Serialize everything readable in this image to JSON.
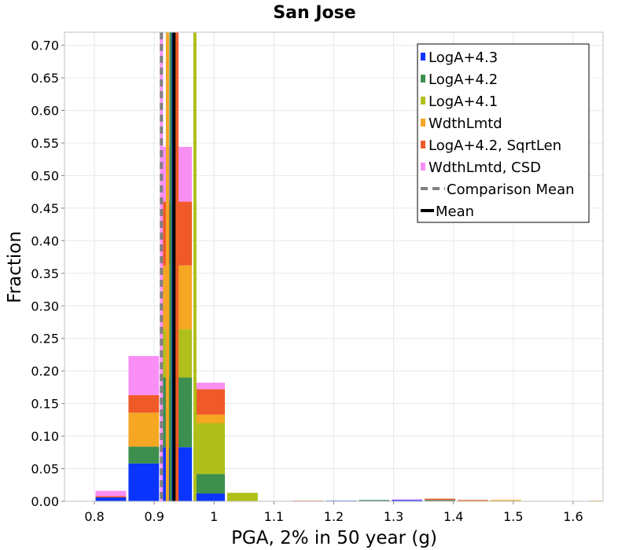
{
  "chart_data": {
    "type": "bar",
    "title": "San Jose",
    "xlabel": "PGA, 2% in 50 year (g)",
    "ylabel": "Fraction",
    "xlim": [
      0.75,
      1.65
    ],
    "ylim": [
      0,
      0.72
    ],
    "xticks": [
      0.8,
      0.9,
      1,
      1.1,
      1.2,
      1.3,
      1.4,
      1.5,
      1.6
    ],
    "xtick_labels": [
      "0.8",
      "0.9",
      "1",
      "1.1",
      "1.2",
      "1.3",
      "1.4",
      "1.5",
      "1.6"
    ],
    "yticks": [
      0,
      0.05,
      0.1,
      0.15,
      0.2,
      0.25,
      0.3,
      0.35,
      0.4,
      0.45,
      0.5,
      0.55,
      0.6,
      0.65,
      0.7
    ],
    "ytick_labels": [
      "0.00",
      "0.05",
      "0.10",
      "0.15",
      "0.20",
      "0.25",
      "0.30",
      "0.35",
      "0.40",
      "0.45",
      "0.50",
      "0.55",
      "0.60",
      "0.65",
      "0.70"
    ],
    "grid": true,
    "stacked": true,
    "legend_position": "top-right",
    "bin_width": 0.055,
    "bin_centers": [
      0.8275,
      0.8825,
      0.9375,
      0.9925,
      1.0475,
      1.1025,
      1.1575,
      1.2125,
      1.2675,
      1.3225,
      1.3775,
      1.4325,
      1.4875,
      1.5425,
      1.5975,
      1.6525
    ],
    "series": [
      {
        "name": "LogA+4.3",
        "color": "#0a35ff",
        "values": [
          0.006,
          0.058,
          0.083,
          0.012,
          0.0,
          0.0,
          0.0,
          0.001,
          0.001,
          0.002,
          0.001,
          0.0,
          0.0,
          0.0,
          0.0,
          0.0
        ]
      },
      {
        "name": "LogA+4.2",
        "color": "#3d8f4e",
        "values": [
          0.0,
          0.026,
          0.107,
          0.03,
          0.0,
          0.0,
          0.0,
          0.0,
          0.001,
          0.0,
          0.001,
          0.0,
          0.0,
          0.0,
          0.0,
          0.0
        ]
      },
      {
        "name": "LogA+4.1",
        "color": "#b0bf1a",
        "values": [
          0.0,
          0.0,
          0.074,
          0.078,
          0.013,
          0.0,
          0.0,
          0.0,
          0.0,
          0.0,
          0.0,
          0.0,
          0.001,
          0.0,
          0.0,
          0.0
        ]
      },
      {
        "name": "WdthLmtd",
        "color": "#f5a623",
        "values": [
          0.0,
          0.052,
          0.098,
          0.013,
          0.0,
          0.0,
          0.0,
          0.0,
          0.0,
          0.0,
          0.0,
          0.001,
          0.001,
          0.0,
          0.0,
          0.001
        ]
      },
      {
        "name": "LogA+4.2, SqrtLen",
        "color": "#f05a28",
        "values": [
          0.002,
          0.027,
          0.098,
          0.039,
          0.0,
          0.0,
          0.001,
          0.0,
          0.0,
          0.0,
          0.002,
          0.001,
          0.0,
          0.0,
          0.0,
          0.0
        ]
      },
      {
        "name": "WdthLmtd, CSD",
        "color": "#f98ef5",
        "values": [
          0.008,
          0.06,
          0.084,
          0.01,
          0.0,
          0.0,
          0.0,
          0.0,
          0.0,
          0.001,
          0.0,
          0.0,
          0.0,
          0.0,
          0.0,
          0.0
        ]
      }
    ],
    "mean_lines": [
      {
        "x": 0.912,
        "color": "#f98ef5",
        "style": "solid"
      },
      {
        "x": 0.922,
        "color": "#f5a623",
        "style": "solid"
      },
      {
        "x": 0.928,
        "color": "#3d8f4e",
        "style": "solid"
      },
      {
        "x": 0.932,
        "color": "#0a35ff",
        "style": "solid"
      },
      {
        "x": 0.938,
        "color": "#f05a28",
        "style": "solid"
      },
      {
        "x": 0.968,
        "color": "#b0bf1a",
        "style": "solid"
      },
      {
        "x": 0.912,
        "color": "#808080",
        "style": "dashed",
        "label": "Comparison Mean"
      },
      {
        "x": 0.933,
        "color": "#000000",
        "style": "solid",
        "label": "Mean"
      }
    ],
    "legend": [
      {
        "label": "LogA+4.3",
        "color": "#0a35ff",
        "kind": "box"
      },
      {
        "label": "LogA+4.2",
        "color": "#3d8f4e",
        "kind": "box"
      },
      {
        "label": "LogA+4.1",
        "color": "#b0bf1a",
        "kind": "box"
      },
      {
        "label": "WdthLmtd",
        "color": "#f5a623",
        "kind": "box"
      },
      {
        "label": "LogA+4.2, SqrtLen",
        "color": "#f05a28",
        "kind": "box"
      },
      {
        "label": "WdthLmtd, CSD",
        "color": "#f98ef5",
        "kind": "box"
      },
      {
        "label": "Comparison Mean",
        "color": "#808080",
        "kind": "dash"
      },
      {
        "label": "Mean",
        "color": "#000000",
        "kind": "line"
      }
    ]
  }
}
